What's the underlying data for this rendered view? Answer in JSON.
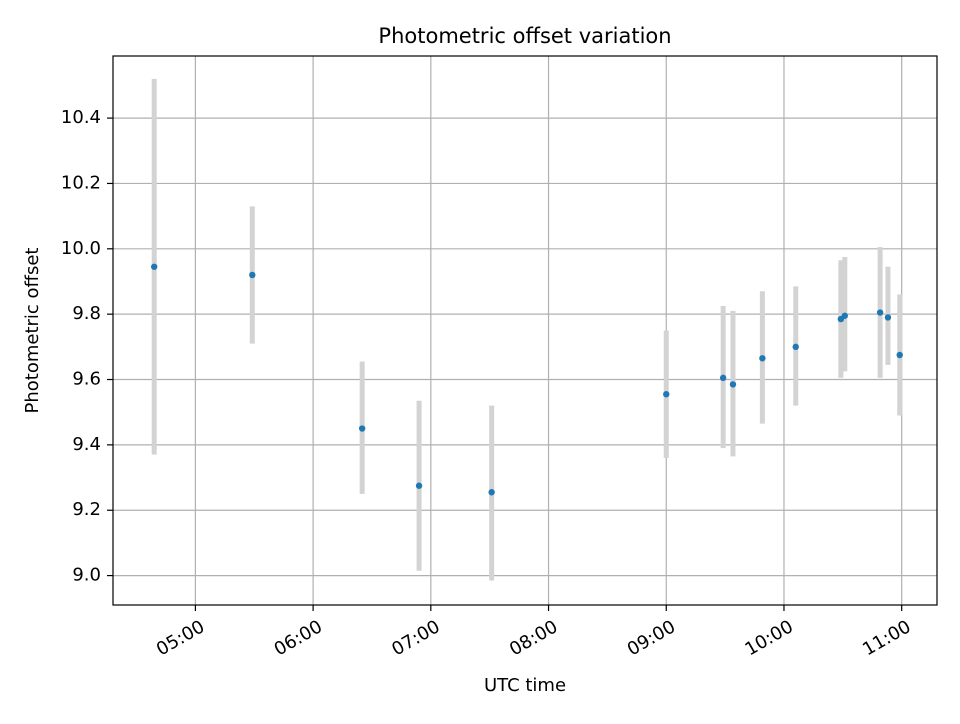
{
  "chart_data": {
    "type": "scatter",
    "title": "Photometric offset variation",
    "xlabel": "UTC time",
    "ylabel": "Photometric offset",
    "x_axis": {
      "kind": "time",
      "range": [
        "04:18",
        "11:18"
      ],
      "ticks": [
        "05:00",
        "06:00",
        "07:00",
        "08:00",
        "09:00",
        "10:00",
        "11:00"
      ]
    },
    "y_axis": {
      "range": [
        8.91,
        10.59
      ],
      "ticks": [
        "9.0",
        "9.2",
        "9.4",
        "9.6",
        "9.8",
        "10.0",
        "10.2",
        "10.4"
      ]
    },
    "grid": true,
    "series": [
      {
        "color": "#1f77b4",
        "errorbar_color": "#d3d3d3",
        "points": [
          {
            "x": "04:39",
            "y": 9.945,
            "ylow": 9.37,
            "yhigh": 10.52
          },
          {
            "x": "05:29",
            "y": 9.92,
            "ylow": 9.71,
            "yhigh": 10.13
          },
          {
            "x": "06:25",
            "y": 9.45,
            "ylow": 9.25,
            "yhigh": 9.655
          },
          {
            "x": "06:54",
            "y": 9.275,
            "ylow": 9.015,
            "yhigh": 9.535
          },
          {
            "x": "07:31",
            "y": 9.255,
            "ylow": 8.985,
            "yhigh": 9.52
          },
          {
            "x": "09:00",
            "y": 9.555,
            "ylow": 9.36,
            "yhigh": 9.75
          },
          {
            "x": "09:29",
            "y": 9.605,
            "ylow": 9.39,
            "yhigh": 9.825
          },
          {
            "x": "09:34",
            "y": 9.585,
            "ylow": 9.365,
            "yhigh": 9.81
          },
          {
            "x": "09:49",
            "y": 9.665,
            "ylow": 9.465,
            "yhigh": 9.87
          },
          {
            "x": "10:06",
            "y": 9.7,
            "ylow": 9.52,
            "yhigh": 9.885
          },
          {
            "x": "10:29",
            "y": 9.785,
            "ylow": 9.605,
            "yhigh": 9.965
          },
          {
            "x": "10:31",
            "y": 9.795,
            "ylow": 9.625,
            "yhigh": 9.975
          },
          {
            "x": "10:49",
            "y": 9.805,
            "ylow": 9.605,
            "yhigh": 10.005
          },
          {
            "x": "10:53",
            "y": 9.79,
            "ylow": 9.645,
            "yhigh": 9.945
          },
          {
            "x": "10:59",
            "y": 9.675,
            "ylow": 9.49,
            "yhigh": 9.86
          }
        ]
      }
    ]
  }
}
